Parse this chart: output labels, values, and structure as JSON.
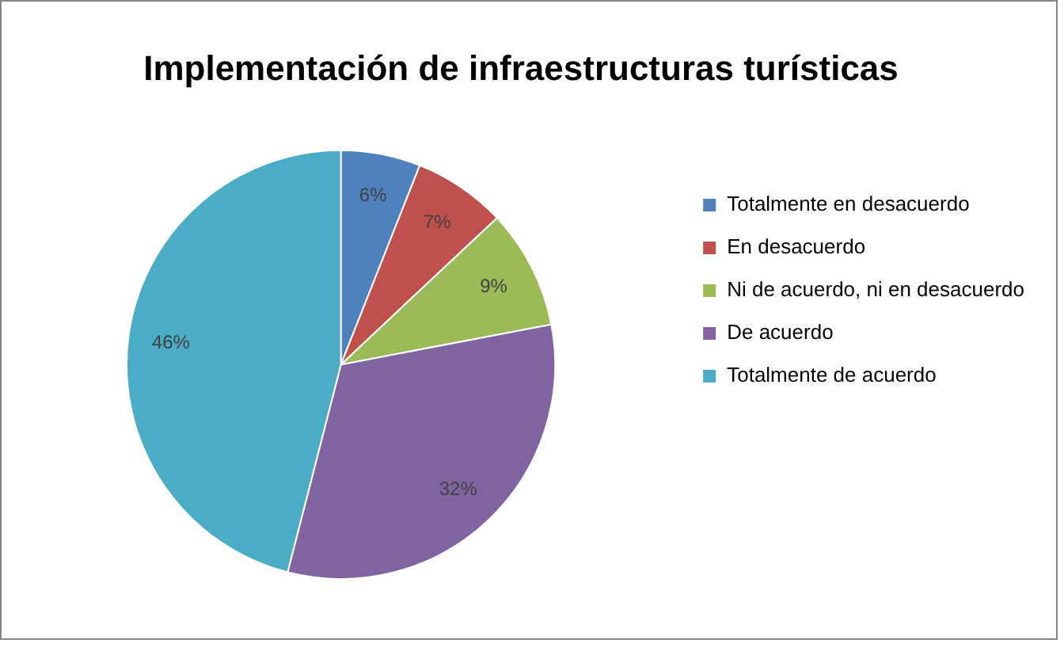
{
  "chart_data": {
    "type": "pie",
    "title": "Implementación de infraestructuras turísticas",
    "categories": [
      "Totalmente en desacuerdo",
      "En desacuerdo",
      "Ni de acuerdo, ni en desacuerdo",
      "De acuerdo",
      "Totalmente de acuerdo"
    ],
    "values": [
      6,
      7,
      9,
      32,
      46
    ],
    "value_labels": [
      "6%",
      "7%",
      "9%",
      "32%",
      "46%"
    ],
    "colors": [
      "#4f81bd",
      "#c0504d",
      "#9bbb59",
      "#8064a2",
      "#4bacc6"
    ],
    "legend": "right"
  }
}
